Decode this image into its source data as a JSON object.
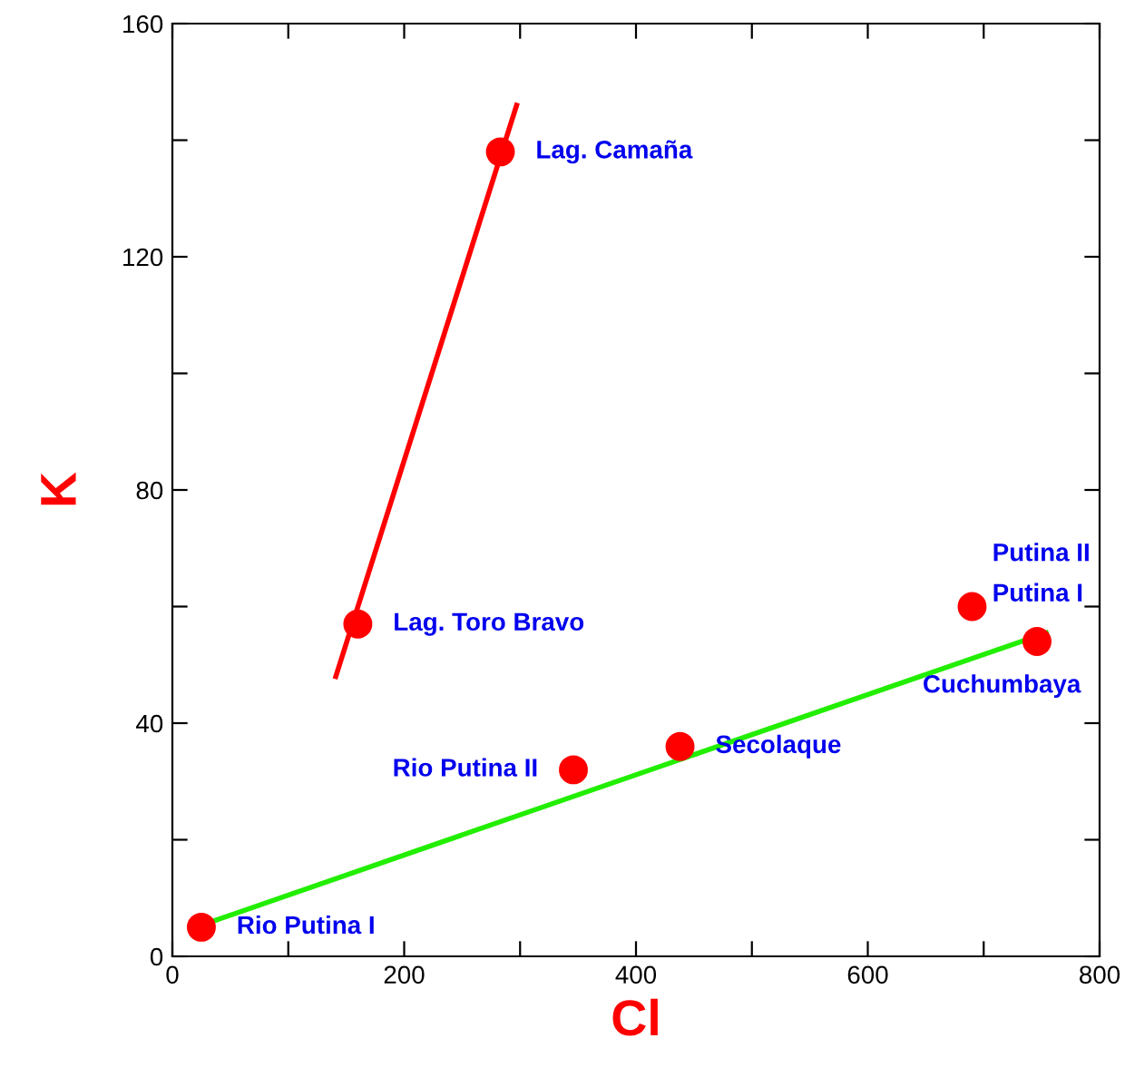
{
  "chart_data": {
    "type": "scatter",
    "xlabel": "Cl",
    "ylabel": "K",
    "xlim": [
      0,
      800
    ],
    "ylim": [
      0,
      160
    ],
    "xticks": [
      0,
      {
        "value": 100,
        "label": null
      },
      200,
      {
        "value": 300,
        "label": null
      },
      400,
      {
        "value": 500,
        "label": null
      },
      600,
      {
        "value": 700,
        "label": null
      },
      800
    ],
    "yticks": [
      0,
      {
        "value": 20,
        "label": null
      },
      40,
      {
        "value": 60,
        "label": null
      },
      80,
      {
        "value": 100,
        "label": null
      },
      120,
      {
        "value": 140,
        "label": null
      },
      160
    ],
    "grid": false,
    "legend": false,
    "series": [
      {
        "type": "line",
        "color": "#ff0000",
        "x": [
          141,
          297
        ],
        "values": [
          48,
          146
        ]
      },
      {
        "type": "line",
        "color": "#22ee00",
        "x": [
          20,
          754
        ],
        "values": [
          5,
          55.5
        ]
      },
      {
        "marker": "circle",
        "color": "#ff0000",
        "x": [
          283,
          160,
          346,
          438,
          690,
          746,
          25
        ],
        "values": [
          138,
          57,
          32,
          36,
          60,
          54,
          5
        ]
      }
    ],
    "annotations": [
      {
        "text": "Lag. Camaña",
        "x": 283,
        "y": 138
      },
      {
        "text": "Lag. Toro Bravo",
        "x": 160,
        "y": 57
      },
      {
        "text": "Rio Putina II",
        "x": 346,
        "y": 32
      },
      {
        "text": "Secolaque",
        "x": 438,
        "y": 36
      },
      {
        "text": "Putina II",
        "x": 690,
        "y": 60
      },
      {
        "text": "Putina I",
        "x": 690,
        "y": 60
      },
      {
        "text": "Cuchumbaya",
        "x": 746,
        "y": 54
      },
      {
        "text": "Rio Putina I",
        "x": 25,
        "y": 5
      }
    ]
  }
}
